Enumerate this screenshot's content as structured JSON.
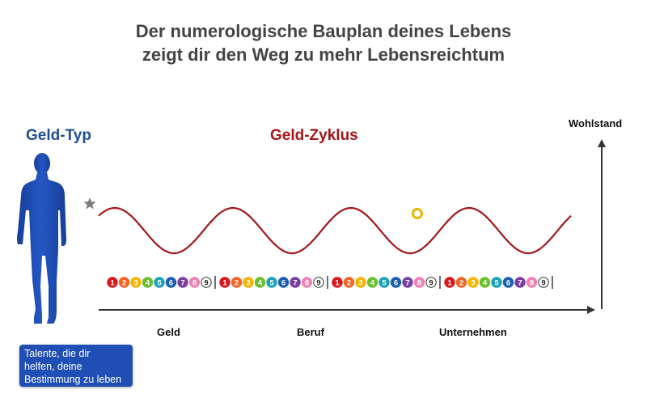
{
  "title": {
    "line1": "Der numerologische Bauplan deines Lebens",
    "line2": "zeigt dir den Weg zu mehr Lebensreichtum"
  },
  "money_type": {
    "label": "Geld-Typ",
    "color": "#1f4e91",
    "icon": "person-icon"
  },
  "money_cycle": {
    "label": "Geld-Zyklus",
    "color": "#a4161a"
  },
  "axis": {
    "vertical_label": "Wohlstand",
    "phases": [
      "Geld",
      "Beruf",
      "Unternehmen"
    ]
  },
  "talents_box": {
    "lines": [
      "Talente, die dir",
      "helfen, deine",
      "Bestimmung zu leben"
    ],
    "color": "#1f4fb4"
  },
  "number_sequence": {
    "numbers": [
      "1",
      "2",
      "3",
      "4",
      "5",
      "6",
      "7",
      "8",
      "9"
    ],
    "groups": 4,
    "colors": [
      "#d7191c",
      "#f26522",
      "#f6b400",
      "#6cbf2f",
      "#1aa3b5",
      "#1a5fb4",
      "#7b3fa0",
      "#ee82b4",
      "#ffffff"
    ]
  },
  "markers": {
    "start": "star-icon",
    "current": "ring-icon"
  }
}
